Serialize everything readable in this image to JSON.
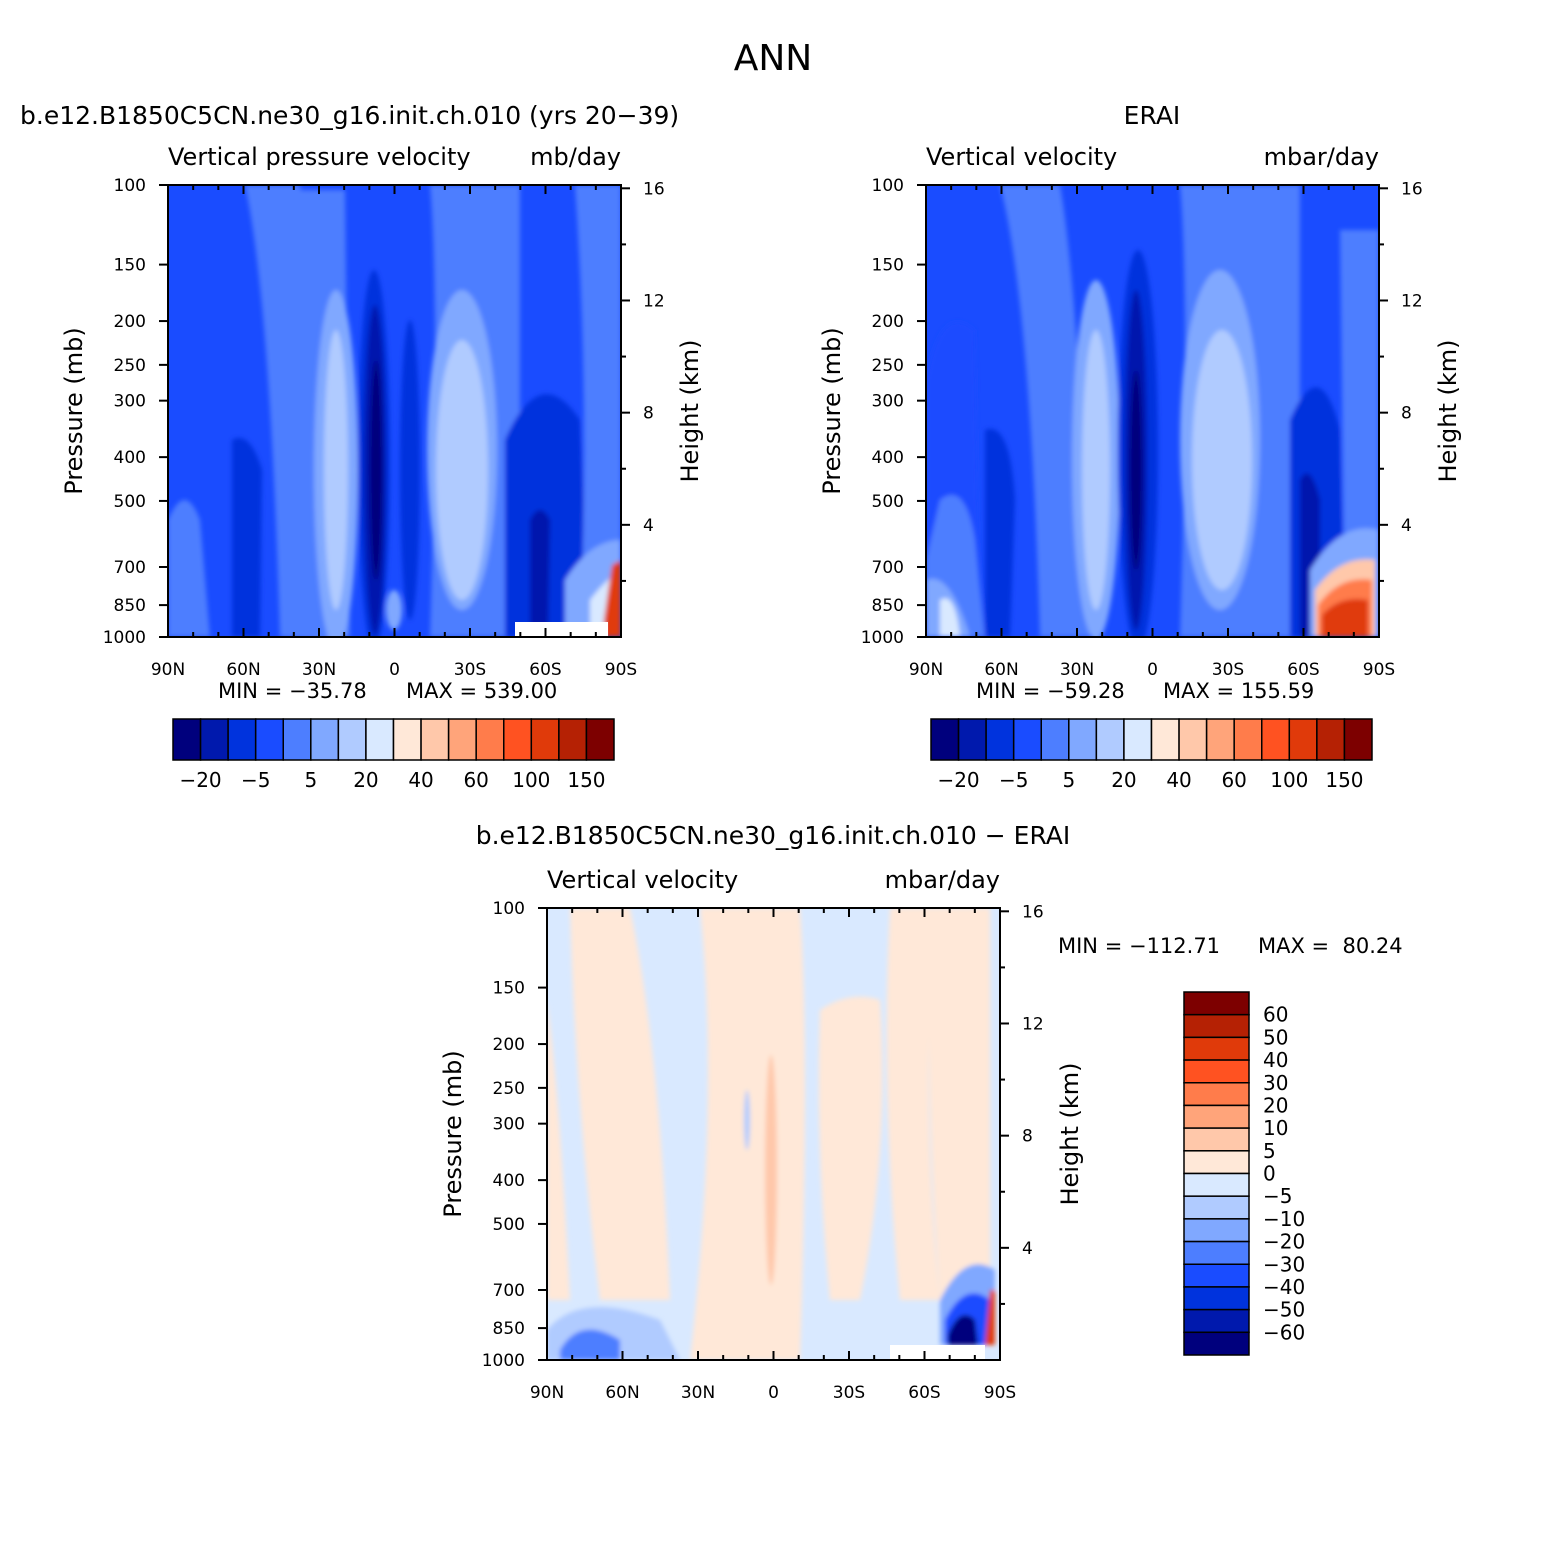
{
  "figure_title": "ANN",
  "chart_data": [
    {
      "type": "heatmap",
      "title": "b.e12.B1850C5CN.ne30_g16.init.ch.010 (yrs 20−39)",
      "subtitle_left": "Vertical pressure velocity",
      "subtitle_right": "mb/day",
      "ylabel": "Pressure (mb)",
      "y2label": "Height (km)",
      "xlim": [
        90,
        -90
      ],
      "x_ticks": [
        {
          "value": 90,
          "label": "90N"
        },
        {
          "value": 60,
          "label": "60N"
        },
        {
          "value": 30,
          "label": "30N"
        },
        {
          "value": 0,
          "label": "0"
        },
        {
          "value": -30,
          "label": "30S"
        },
        {
          "value": -60,
          "label": "60S"
        },
        {
          "value": -90,
          "label": "90S"
        }
      ],
      "y_ticks": [
        100,
        150,
        200,
        250,
        300,
        400,
        500,
        700,
        850,
        1000
      ],
      "y_scale": "log",
      "ylim": [
        1000,
        100
      ],
      "y2_ticks": [
        4,
        8,
        12,
        16
      ],
      "min_label": "MIN = −35.78",
      "max_label": "MAX = 539.00",
      "min": -35.78,
      "max": 539.0,
      "levels": [
        -20,
        -10,
        -5,
        -1,
        5,
        10,
        20,
        30,
        40,
        50,
        60,
        80,
        100,
        120,
        150
      ],
      "colorbar_labels": [
        "−20",
        "−5",
        "5",
        "20",
        "40",
        "60",
        "100",
        "150"
      ],
      "colorbar_orientation": "horizontal"
    },
    {
      "type": "heatmap",
      "title": "ERAI",
      "subtitle_left": "Vertical velocity",
      "subtitle_right": "mbar/day",
      "ylabel": "Pressure (mb)",
      "y2label": "Height (km)",
      "xlim": [
        90,
        -90
      ],
      "x_ticks": [
        {
          "value": 90,
          "label": "90N"
        },
        {
          "value": 60,
          "label": "60N"
        },
        {
          "value": 30,
          "label": "30N"
        },
        {
          "value": 0,
          "label": "0"
        },
        {
          "value": -30,
          "label": "30S"
        },
        {
          "value": -60,
          "label": "60S"
        },
        {
          "value": -90,
          "label": "90S"
        }
      ],
      "y_ticks": [
        100,
        150,
        200,
        250,
        300,
        400,
        500,
        700,
        850,
        1000
      ],
      "y_scale": "log",
      "ylim": [
        1000,
        100
      ],
      "y2_ticks": [
        4,
        8,
        12,
        16
      ],
      "min_label": "MIN = −59.28",
      "max_label": "MAX = 155.59",
      "min": -59.28,
      "max": 155.59,
      "levels": [
        -20,
        -10,
        -5,
        -1,
        5,
        10,
        20,
        30,
        40,
        50,
        60,
        80,
        100,
        120,
        150
      ],
      "colorbar_labels": [
        "−20",
        "−5",
        "5",
        "20",
        "40",
        "60",
        "100",
        "150"
      ],
      "colorbar_orientation": "horizontal"
    },
    {
      "type": "heatmap",
      "title": "b.e12.B1850C5CN.ne30_g16.init.ch.010 − ERAI",
      "subtitle_left": "Vertical velocity",
      "subtitle_right": "mbar/day",
      "ylabel": "Pressure (mb)",
      "y2label": "Height (km)",
      "xlim": [
        90,
        -90
      ],
      "x_ticks": [
        {
          "value": 90,
          "label": "90N"
        },
        {
          "value": 60,
          "label": "60N"
        },
        {
          "value": 30,
          "label": "30N"
        },
        {
          "value": 0,
          "label": "0"
        },
        {
          "value": -30,
          "label": "30S"
        },
        {
          "value": -60,
          "label": "60S"
        },
        {
          "value": -90,
          "label": "90S"
        }
      ],
      "y_ticks": [
        100,
        150,
        200,
        250,
        300,
        400,
        500,
        700,
        850,
        1000
      ],
      "y_scale": "log",
      "ylim": [
        1000,
        100
      ],
      "y2_ticks": [
        4,
        8,
        12,
        16
      ],
      "min_label": "MIN = −112.71",
      "max_label": "MAX =  80.24",
      "min": -112.71,
      "max": 80.24,
      "levels": [
        -60,
        -50,
        -40,
        -30,
        -20,
        -10,
        -5,
        0,
        5,
        10,
        20,
        30,
        40,
        50,
        60
      ],
      "colorbar_labels": [
        "60",
        "50",
        "40",
        "30",
        "20",
        "10",
        "5",
        "0",
        "−5",
        "−10",
        "−20",
        "−30",
        "−40",
        "−50",
        "−60"
      ],
      "colorbar_orientation": "vertical"
    }
  ],
  "colormap": [
    "#00007d",
    "#0019ad",
    "#0033dd",
    "#1a4cff",
    "#4d7eff",
    "#80a8ff",
    "#b0cbff",
    "#d9e9ff",
    "#ffe8d8",
    "#ffc8aa",
    "#ffa47a",
    "#ff7c4b",
    "#ff5221",
    "#e03a0a",
    "#b52104",
    "#7d0000"
  ]
}
